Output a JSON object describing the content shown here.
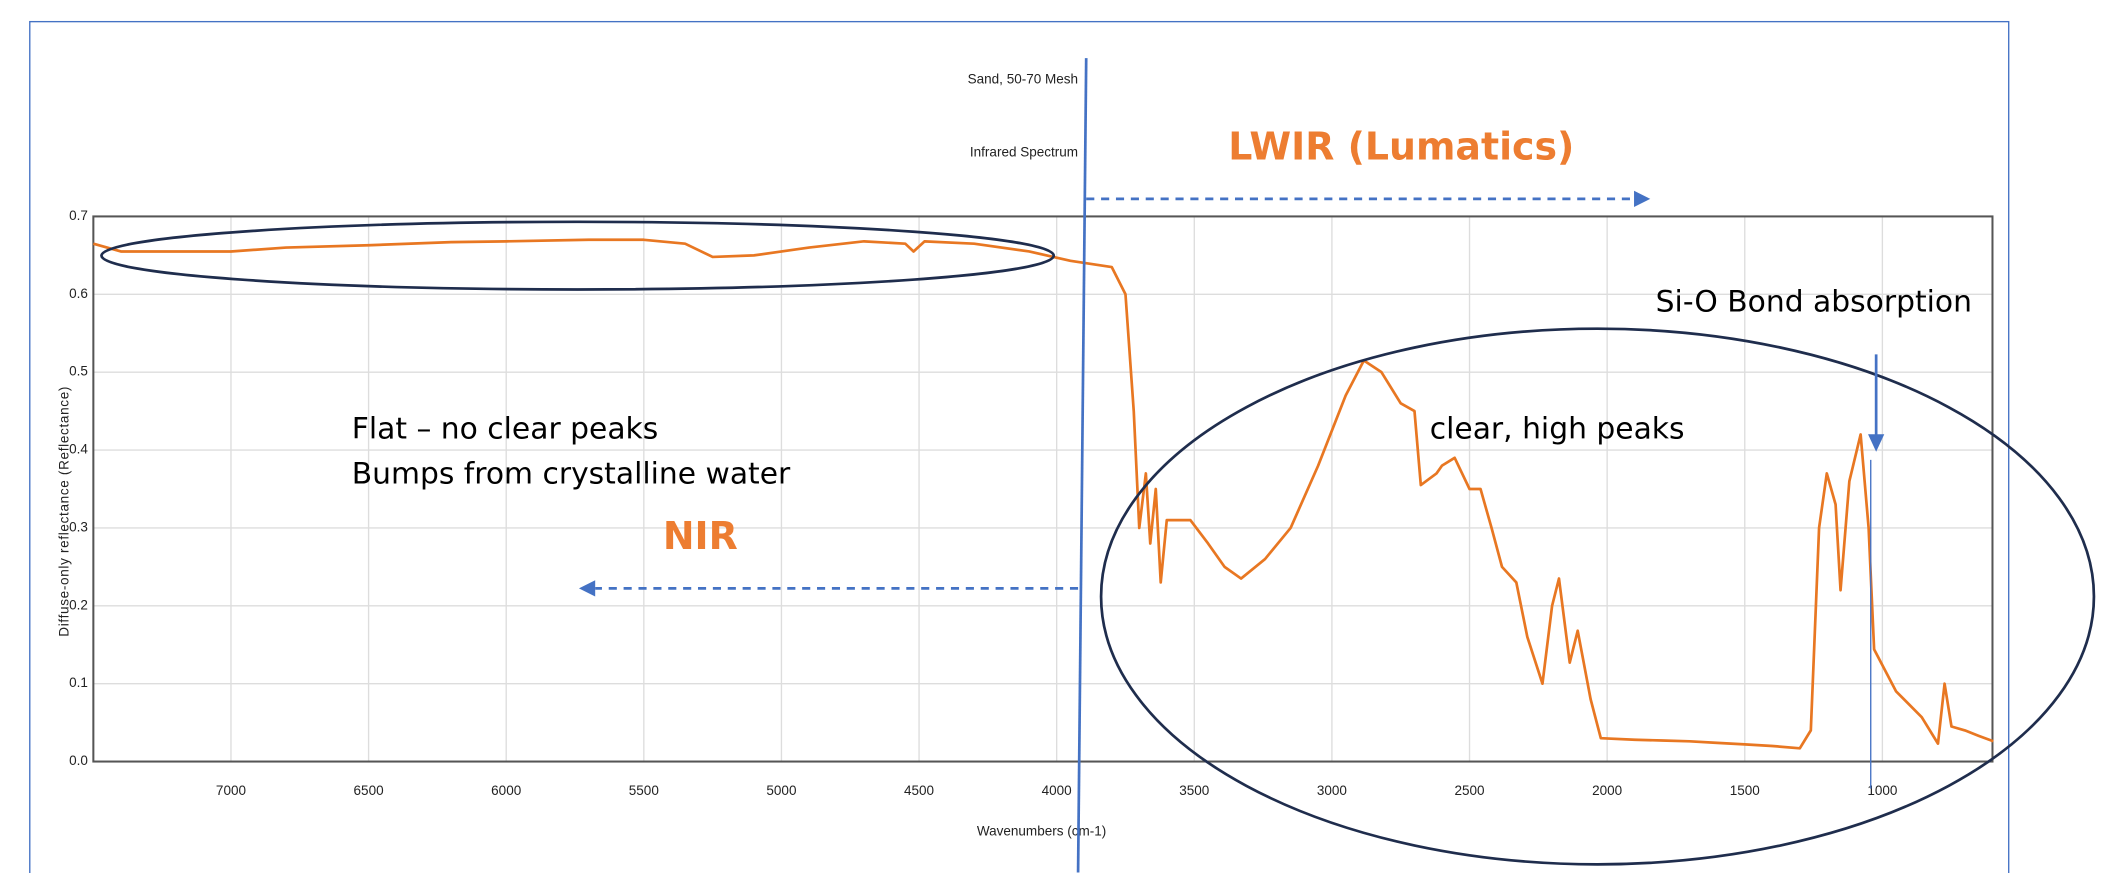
{
  "chart_data": {
    "type": "line",
    "title": "Sand, 50-70 Mesh",
    "subtitle": "Infrared Spectrum",
    "x_label": "Wavenumbers (cm-1)",
    "y_label": "Diffuse-only reflectance (Reflectance)",
    "annotations": [
      "LWIR (Lumatics)",
      "NIR",
      "Flat – no clear peaks",
      "Bumps from crystalline water",
      "clear, high peaks",
      "Si-O Bond absorption"
    ],
    "color": "#e87722",
    "xlim": [
      7500,
      600
    ],
    "ylim": [
      0,
      0.7
    ],
    "xticks": [
      7000,
      6500,
      6000,
      5500,
      5000,
      4500,
      4000,
      3500,
      3000,
      2500,
      2000,
      1500,
      1000
    ],
    "yticks": [
      {
        "value": 0,
        "label": "0.0"
      },
      0.1,
      0.2,
      0.3,
      0.4,
      0.5,
      0.6,
      0.7
    ],
    "grid": true,
    "x": [
      7500,
      7400,
      7200,
      7000,
      6800,
      6500,
      6200,
      6000,
      5700,
      5500,
      5350,
      5250,
      5100,
      4900,
      4700,
      4550,
      4520,
      4480,
      4300,
      4100,
      3950,
      3800,
      3750,
      3720,
      3700,
      3676,
      3660,
      3640,
      3622,
      3600,
      3560,
      3514,
      3450,
      3390,
      3330,
      3243,
      3150,
      3050,
      2950,
      2884,
      2820,
      2750,
      2700,
      2677,
      2620,
      2600,
      2554,
      2500,
      2460,
      2420,
      2382,
      2330,
      2290,
      2235,
      2200,
      2175,
      2136,
      2107,
      2060,
      2023,
      1900,
      1800,
      1700,
      1600,
      1500,
      1400,
      1300,
      1260,
      1230,
      1202,
      1170,
      1152,
      1120,
      1079,
      1050,
      1030,
      950,
      857,
      798,
      774,
      749,
      700,
      650,
      597
    ],
    "values": [
      0.665,
      0.655,
      0.655,
      0.655,
      0.66,
      0.663,
      0.667,
      0.668,
      0.67,
      0.67,
      0.665,
      0.648,
      0.65,
      0.66,
      0.668,
      0.665,
      0.655,
      0.668,
      0.665,
      0.655,
      0.643,
      0.635,
      0.6,
      0.45,
      0.3,
      0.37,
      0.28,
      0.35,
      0.23,
      0.31,
      0.31,
      0.31,
      0.28,
      0.25,
      0.235,
      0.26,
      0.3,
      0.38,
      0.47,
      0.515,
      0.5,
      0.46,
      0.45,
      0.355,
      0.37,
      0.38,
      0.39,
      0.35,
      0.35,
      0.3,
      0.25,
      0.23,
      0.16,
      0.1,
      0.2,
      0.235,
      0.127,
      0.168,
      0.08,
      0.03,
      0.028,
      0.027,
      0.026,
      0.024,
      0.022,
      0.02,
      0.017,
      0.04,
      0.3,
      0.37,
      0.33,
      0.22,
      0.36,
      0.42,
      0.3,
      0.144,
      0.09,
      0.057,
      0.023,
      0.1,
      0.045,
      0.04,
      0.033,
      0.026
    ]
  }
}
